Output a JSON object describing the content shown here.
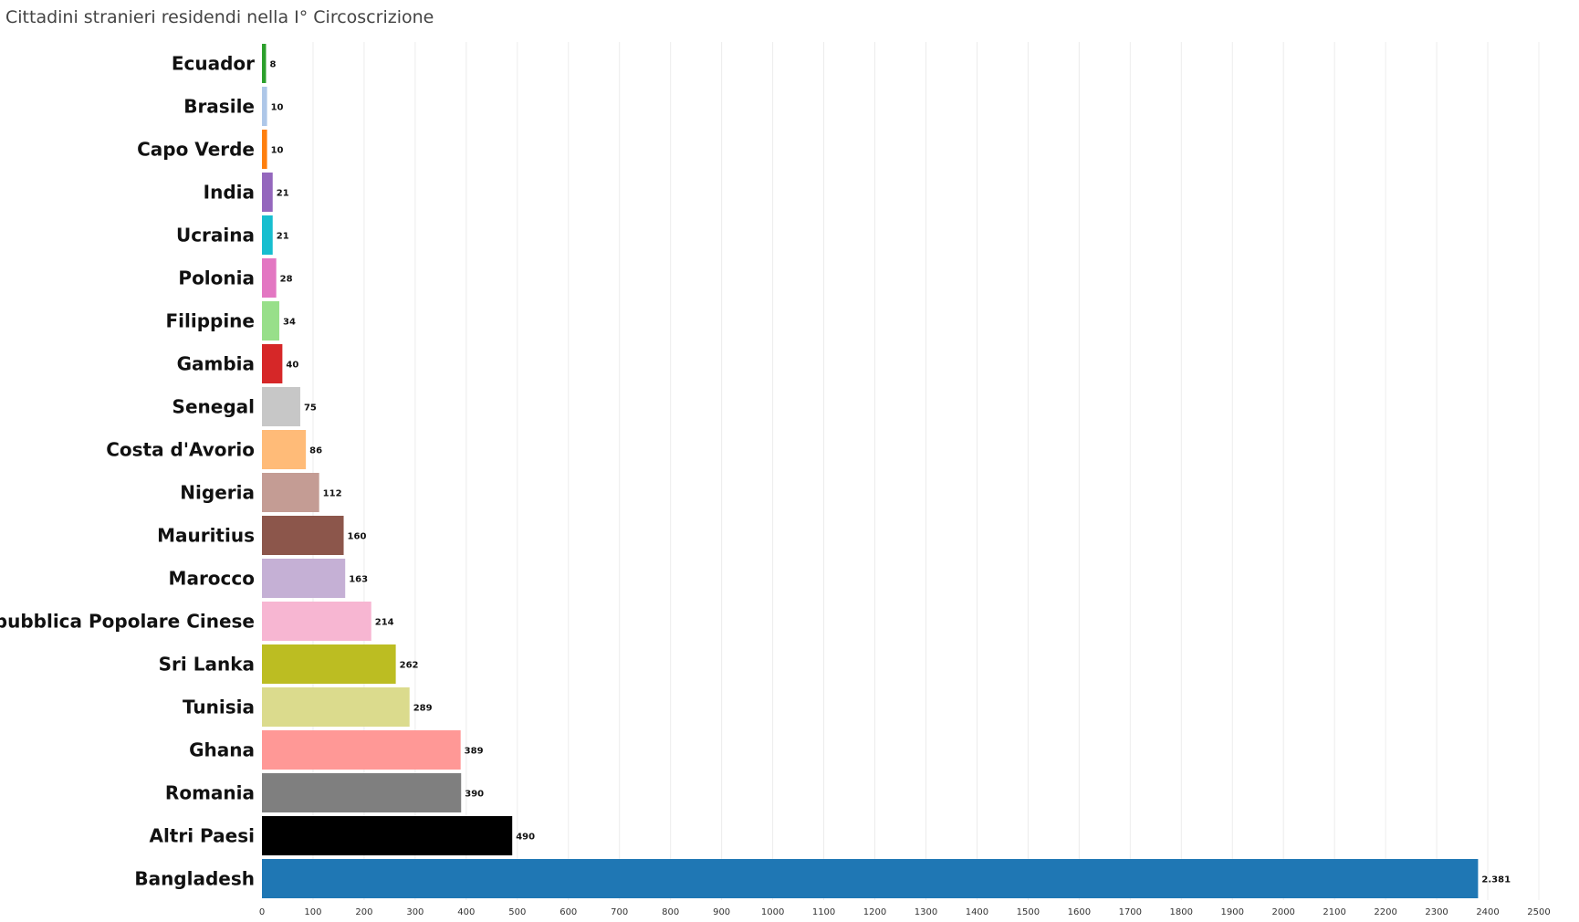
{
  "chart_data": {
    "type": "bar",
    "orientation": "horizontal",
    "title": "Cittadini stranieri residendi nella I° Circoscrizione",
    "xlabel": "",
    "ylabel": "",
    "xlim": [
      0,
      2500
    ],
    "grid": true,
    "legend": "none",
    "categories": [
      "Ecuador",
      "Brasile",
      "Capo Verde",
      "India",
      "Ucraina",
      "Polonia",
      "Filippine",
      "Gambia",
      "Senegal",
      "Costa d'Avorio",
      "Nigeria",
      "Mauritius",
      "Marocco",
      "Repubblica Popolare Cinese",
      "Sri Lanka",
      "Tunisia",
      "Ghana",
      "Romania",
      "Altri Paesi",
      "Bangladesh"
    ],
    "values": [
      8,
      10,
      10,
      21,
      21,
      28,
      34,
      40,
      75,
      86,
      112,
      160,
      163,
      214,
      262,
      289,
      389,
      390,
      490,
      2381
    ],
    "value_labels": [
      "8",
      "10",
      "10",
      "21",
      "21",
      "28",
      "34",
      "40",
      "75",
      "86",
      "112",
      "160",
      "163",
      "214",
      "262",
      "289",
      "389",
      "390",
      "490",
      "2.381"
    ],
    "colors": [
      "#2ca02c",
      "#aec7e8",
      "#ff7f0e",
      "#9467bd",
      "#17becf",
      "#e377c2",
      "#98df8a",
      "#d62728",
      "#c7c7c7",
      "#ffbb78",
      "#c49c94",
      "#8c564b",
      "#c5b0d5",
      "#f7b6d2",
      "#bcbd22",
      "#dbdb8d",
      "#ff9896",
      "#7f7f7f",
      "#000000",
      "#1f77b4"
    ],
    "x_ticks": [
      "0",
      "100",
      "200",
      "300",
      "400",
      "500",
      "600",
      "700",
      "800",
      "900",
      "1000",
      "1100",
      "1200",
      "1300",
      "1400",
      "1500",
      "1600",
      "1700",
      "1800",
      "1900",
      "2000",
      "2100",
      "2200",
      "2300",
      "2400",
      "2500"
    ]
  }
}
